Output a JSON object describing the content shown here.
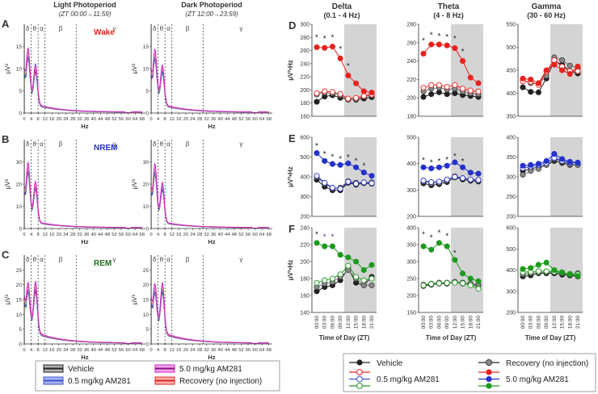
{
  "left_panels": {
    "column_titles": [
      "Light Photoperiod",
      "Dark Photoperiod"
    ],
    "column_subtitles": [
      "(ZT 00:00→11:59)",
      "(ZT 12:00→23:59)"
    ],
    "rows": [
      {
        "letter": "A",
        "state": "Wake",
        "color": "#e8231f",
        "ymax": 20,
        "yticks": [
          0,
          5,
          10,
          15
        ]
      },
      {
        "letter": "B",
        "state": "NREM",
        "color": "#2432c9",
        "ymax": 40,
        "yticks": [
          0,
          10,
          20,
          30
        ]
      },
      {
        "letter": "C",
        "state": "REM",
        "color": "#1e6f1e",
        "ymax": 30,
        "yticks": [
          0,
          5,
          10,
          15,
          20,
          25
        ]
      }
    ],
    "x_ticks": [
      0,
      4,
      8,
      12,
      16,
      20,
      24,
      28,
      32,
      36,
      40,
      44,
      48,
      52,
      56,
      60,
      64,
      68
    ],
    "xlabel": "Hz",
    "ylabel": "μV²",
    "band_symbols": [
      "δ",
      "θ",
      "α",
      "β",
      "γ"
    ],
    "band_edges_hz": [
      0.1,
      4,
      8,
      12,
      30
    ]
  },
  "right_panels": {
    "band_titles": [
      "Delta",
      "Theta",
      "Gamma"
    ],
    "band_ranges": [
      "(0.1 - 4 Hz)",
      "(4 - 8 Hz)",
      "(30 - 60 Hz)"
    ],
    "row_letters": [
      "D",
      "E",
      "F"
    ],
    "ylabel": "μV²•Hz",
    "xlabel": "Time of Day (ZT)",
    "zt_labels": [
      "00:00",
      "03:00",
      "06:00",
      "09:00",
      "12:00",
      "15:00",
      "18:00",
      "21:00"
    ],
    "dark_start_index": 4
  },
  "legend_left": {
    "items": [
      "Vehicle",
      "0.5 mg/kg AM281",
      "5.0 mg/kg AM281",
      "Recovery (no injection)"
    ]
  },
  "legend_right": {
    "items": [
      "Vehicle",
      "Recovery (no injection)",
      "0.5 mg/kg AM281",
      "5.0 mg/kg AM281"
    ]
  },
  "colors": {
    "vehicle": "#222222",
    "low": "#3d55d0",
    "high": "#d01ec8",
    "recovery": "#e8231f",
    "wake": "#e8231f",
    "nrem": "#2432c9",
    "rem": "#1e9a1e",
    "dark_shade": "#d4d4d4",
    "grey_recovery": "#8a8a8a"
  },
  "chart_data": [
    {
      "id": "D-delta",
      "type": "line",
      "state": "Wake",
      "title": "Delta",
      "ylim": [
        160,
        300
      ],
      "yticks": [
        160,
        180,
        200,
        220,
        240,
        260,
        280,
        300
      ],
      "series": [
        {
          "name": "Vehicle",
          "values": [
            182,
            190,
            192,
            188,
            186,
            185,
            187,
            189
          ]
        },
        {
          "name": "Recovery (no injection)",
          "values": [
            193,
            196,
            195,
            192,
            185,
            186,
            190,
            192
          ]
        },
        {
          "name": "0.5 mg/kg AM281",
          "values": [
            195,
            198,
            197,
            194,
            187,
            188,
            191,
            193
          ]
        },
        {
          "name": "5.0 mg/kg AM281",
          "values": [
            265,
            264,
            266,
            248,
            222,
            210,
            198,
            196
          ]
        }
      ],
      "stars": [
        {
          "i": 0,
          "y": 280
        },
        {
          "i": 1,
          "y": 278
        },
        {
          "i": 2,
          "y": 280
        },
        {
          "i": 3,
          "y": 262
        },
        {
          "i": 4,
          "y": 236
        }
      ]
    },
    {
      "id": "D-theta",
      "type": "line",
      "state": "Wake",
      "title": "Theta",
      "ylim": [
        180,
        280
      ],
      "yticks": [
        180,
        200,
        220,
        240,
        260,
        280
      ],
      "series": [
        {
          "name": "Vehicle",
          "values": [
            201,
            204,
            206,
            204,
            205,
            203,
            202,
            201
          ]
        },
        {
          "name": "Recovery (no injection)",
          "values": [
            207,
            210,
            211,
            209,
            210,
            207,
            205,
            204
          ]
        },
        {
          "name": "0.5 mg/kg AM281",
          "values": [
            211,
            214,
            214,
            212,
            214,
            210,
            208,
            207
          ]
        },
        {
          "name": "5.0 mg/kg AM281",
          "values": [
            248,
            258,
            258,
            257,
            254,
            240,
            222,
            216
          ]
        }
      ],
      "stars": [
        {
          "i": 0,
          "y": 262
        },
        {
          "i": 1,
          "y": 268
        },
        {
          "i": 2,
          "y": 267
        },
        {
          "i": 3,
          "y": 266
        },
        {
          "i": 4,
          "y": 264
        },
        {
          "i": 5,
          "y": 250
        }
      ]
    },
    {
      "id": "D-gamma",
      "type": "line",
      "state": "Wake",
      "title": "Gamma",
      "ylim": [
        350,
        550
      ],
      "yticks": [
        350,
        400,
        450,
        500,
        550
      ],
      "series": [
        {
          "name": "Vehicle",
          "values": [
            413,
            403,
            402,
            432,
            470,
            462,
            448,
            443
          ]
        },
        {
          "name": "Recovery (no injection)",
          "values": [
            428,
            422,
            420,
            438,
            478,
            472,
            460,
            455
          ]
        },
        {
          "name": "0.5 mg/kg AM281",
          "values": [
            426,
            425,
            418,
            447,
            472,
            458,
            448,
            448
          ]
        },
        {
          "name": "5.0 mg/kg AM281",
          "values": [
            432,
            430,
            422,
            450,
            462,
            450,
            442,
            458
          ]
        }
      ],
      "stars": []
    },
    {
      "id": "E-delta",
      "type": "line",
      "state": "NREM",
      "title": "Delta",
      "ylim": [
        200,
        600
      ],
      "yticks": [
        200,
        300,
        400,
        500,
        600
      ],
      "series": [
        {
          "name": "Vehicle",
          "values": [
            385,
            350,
            332,
            332,
            370,
            360,
            368,
            365
          ]
        },
        {
          "name": "Recovery (no injection)",
          "values": [
            400,
            365,
            342,
            345,
            378,
            370,
            370,
            372
          ]
        },
        {
          "name": "0.5 mg/kg AM281",
          "values": [
            405,
            370,
            345,
            340,
            375,
            365,
            372,
            368
          ]
        },
        {
          "name": "5.0 mg/kg AM281",
          "values": [
            520,
            480,
            465,
            460,
            468,
            448,
            422,
            405
          ]
        }
      ],
      "stars": [
        {
          "i": 0,
          "y": 555
        },
        {
          "i": 1,
          "y": 515
        },
        {
          "i": 2,
          "y": 500
        },
        {
          "i": 3,
          "y": 490
        },
        {
          "i": 4,
          "y": 498
        },
        {
          "i": 5,
          "y": 480
        },
        {
          "i": 6,
          "y": 455
        }
      ]
    },
    {
      "id": "E-theta",
      "type": "line",
      "state": "NREM",
      "title": "Theta",
      "ylim": [
        200,
        500
      ],
      "yticks": [
        200,
        300,
        400,
        500
      ],
      "series": [
        {
          "name": "Vehicle",
          "values": [
            325,
            318,
            322,
            330,
            348,
            340,
            335,
            332
          ]
        },
        {
          "name": "Recovery (no injection)",
          "values": [
            332,
            325,
            328,
            336,
            352,
            345,
            338,
            335
          ]
        },
        {
          "name": "0.5 mg/kg AM281",
          "values": [
            336,
            330,
            332,
            340,
            350,
            345,
            340,
            338
          ]
        },
        {
          "name": "5.0 mg/kg AM281",
          "values": [
            386,
            382,
            386,
            392,
            405,
            386,
            366,
            362
          ]
        }
      ],
      "stars": [
        {
          "i": 0,
          "y": 412
        },
        {
          "i": 1,
          "y": 404
        },
        {
          "i": 2,
          "y": 408
        },
        {
          "i": 3,
          "y": 414
        },
        {
          "i": 4,
          "y": 428
        },
        {
          "i": 5,
          "y": 408
        }
      ]
    },
    {
      "id": "E-gamma",
      "type": "line",
      "state": "NREM",
      "title": "Gamma",
      "ylim": [
        200,
        400
      ],
      "yticks": [
        200,
        250,
        300,
        350,
        400
      ],
      "series": [
        {
          "name": "Vehicle",
          "values": [
            315,
            320,
            325,
            330,
            340,
            335,
            330,
            330
          ]
        },
        {
          "name": "Recovery (no injection)",
          "values": [
            305,
            315,
            320,
            330,
            345,
            338,
            332,
            330
          ]
        },
        {
          "name": "0.5 mg/kg AM281",
          "values": [
            322,
            326,
            330,
            335,
            348,
            340,
            336,
            335
          ]
        },
        {
          "name": "5.0 mg/kg AM281",
          "values": [
            328,
            330,
            333,
            340,
            358,
            345,
            338,
            336
          ]
        }
      ],
      "stars": []
    },
    {
      "id": "F-delta",
      "type": "line",
      "state": "REM",
      "title": "Delta",
      "ylim": [
        140,
        240
      ],
      "yticks": [
        140,
        160,
        180,
        200,
        220,
        240
      ],
      "series": [
        {
          "name": "Vehicle",
          "values": [
            165,
            170,
            172,
            178,
            192,
            175,
            172,
            182
          ]
        },
        {
          "name": "Recovery (no injection)",
          "values": [
            170,
            174,
            176,
            182,
            190,
            180,
            172,
            172
          ]
        },
        {
          "name": "0.5 mg/kg AM281",
          "values": [
            175,
            178,
            180,
            185,
            195,
            182,
            178,
            180
          ]
        },
        {
          "name": "5.0 mg/kg AM281",
          "values": [
            222,
            218,
            218,
            208,
            205,
            200,
            190,
            196
          ]
        }
      ],
      "stars": [
        {
          "i": 0,
          "y": 232
        },
        {
          "i": 1,
          "y": 229,
          "color": "purple"
        },
        {
          "i": 2,
          "y": 229,
          "color": "purple"
        }
      ]
    },
    {
      "id": "F-theta",
      "type": "line",
      "state": "REM",
      "title": "Theta",
      "ylim": [
        150,
        400
      ],
      "yticks": [
        150,
        200,
        250,
        300,
        350,
        400
      ],
      "series": [
        {
          "name": "Vehicle",
          "values": [
            228,
            232,
            235,
            235,
            240,
            235,
            232,
            230
          ]
        },
        {
          "name": "Recovery (no injection)",
          "values": [
            232,
            235,
            238,
            238,
            240,
            238,
            235,
            232
          ]
        },
        {
          "name": "0.5 mg/kg AM281",
          "values": [
            230,
            234,
            236,
            237,
            238,
            236,
            230,
            220
          ]
        },
        {
          "name": "5.0 mg/kg AM281",
          "values": [
            345,
            335,
            355,
            345,
            305,
            265,
            250,
            242
          ]
        }
      ],
      "stars": [
        {
          "i": 0,
          "y": 380
        },
        {
          "i": 1,
          "y": 370
        },
        {
          "i": 2,
          "y": 385
        },
        {
          "i": 3,
          "y": 375
        },
        {
          "i": 4,
          "y": 325
        }
      ]
    },
    {
      "id": "F-gamma",
      "type": "line",
      "state": "REM",
      "title": "Gamma",
      "ylim": [
        200,
        600
      ],
      "yticks": [
        200,
        300,
        400,
        500,
        600
      ],
      "series": [
        {
          "name": "Vehicle",
          "values": [
            370,
            375,
            385,
            385,
            385,
            378,
            375,
            370
          ]
        },
        {
          "name": "Recovery (no injection)",
          "values": [
            380,
            385,
            388,
            390,
            390,
            385,
            380,
            385
          ]
        },
        {
          "name": "0.5 mg/kg AM281",
          "values": [
            390,
            392,
            395,
            395,
            392,
            388,
            382,
            380
          ]
        },
        {
          "name": "5.0 mg/kg AM281",
          "values": [
            405,
            410,
            425,
            435,
            400,
            390,
            380,
            372
          ]
        }
      ],
      "stars": []
    }
  ]
}
